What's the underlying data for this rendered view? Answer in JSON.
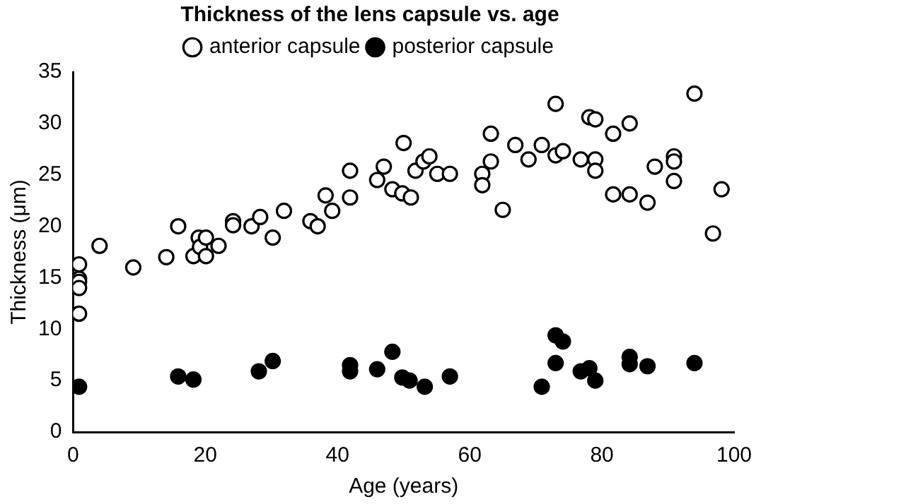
{
  "chart_data": {
    "type": "scatter",
    "title": "Thickness of the lens capsule vs. age",
    "xlabel": "Age (years)",
    "ylabel": "Thickness (μm)",
    "xlim": [
      0,
      100
    ],
    "xticks": [
      0,
      20,
      40,
      60,
      80,
      100
    ],
    "ylim": [
      0,
      35
    ],
    "yticks": [
      0,
      5,
      10,
      15,
      20,
      25,
      30,
      35
    ],
    "grid": false,
    "legend": "top",
    "marker": "circle",
    "series": [
      {
        "name": "anterior capsule",
        "color": "#ffffff",
        "x": [
          0.9,
          0.9,
          0.9,
          0.9,
          0.9,
          4.0,
          9.1,
          14.1,
          15.9,
          18.2,
          19.0,
          19.2,
          20.1,
          20.1,
          22.0,
          24.2,
          24.2,
          27.0,
          28.3,
          30.2,
          31.9,
          35.9,
          37.0,
          38.2,
          39.2,
          41.9,
          41.9,
          46.0,
          47.0,
          48.3,
          50.0,
          49.8,
          51.1,
          51.8,
          53.0,
          53.9,
          55.1,
          57.0,
          61.9,
          61.9,
          63.2,
          63.2,
          65.0,
          66.9,
          68.9,
          70.9,
          73.0,
          73.0,
          74.1,
          76.8,
          78.1,
          79.0,
          79.0,
          79.0,
          81.7,
          81.7,
          84.2,
          84.2,
          86.9,
          88.0,
          90.9,
          90.9,
          90.9,
          94.0,
          96.8,
          98.1
        ],
        "values": [
          16.3,
          14.9,
          14.6,
          14.0,
          11.5,
          18.1,
          16.0,
          17.0,
          20.0,
          17.1,
          18.9,
          18.0,
          18.9,
          17.1,
          18.1,
          20.5,
          20.1,
          20.0,
          20.9,
          18.9,
          21.5,
          20.5,
          20.0,
          23.0,
          21.5,
          25.4,
          22.8,
          24.5,
          25.8,
          23.6,
          28.1,
          23.2,
          22.8,
          25.4,
          26.3,
          26.8,
          25.1,
          25.1,
          25.1,
          24.0,
          26.3,
          29.0,
          21.6,
          27.9,
          26.5,
          27.9,
          31.9,
          26.9,
          27.3,
          26.5,
          30.6,
          30.4,
          26.5,
          25.4,
          29.0,
          23.1,
          30.0,
          23.1,
          22.3,
          25.8,
          26.8,
          26.3,
          24.4,
          32.9,
          19.3,
          23.6
        ]
      },
      {
        "name": "posterior capsule",
        "color": "#000000",
        "x": [
          0.9,
          15.9,
          18.2,
          28.1,
          30.2,
          41.9,
          41.9,
          46.0,
          48.3,
          49.8,
          50.9,
          53.2,
          57.0,
          70.9,
          73.0,
          74.1,
          73.0,
          76.8,
          78.1,
          79.0,
          84.2,
          84.2,
          86.9,
          94.0
        ],
        "values": [
          4.4,
          5.4,
          5.1,
          5.9,
          6.9,
          6.5,
          5.9,
          6.1,
          7.8,
          5.3,
          5.0,
          4.4,
          5.4,
          4.4,
          9.4,
          8.8,
          6.7,
          5.9,
          6.2,
          5.0,
          7.3,
          6.6,
          6.4,
          6.7
        ]
      }
    ]
  }
}
